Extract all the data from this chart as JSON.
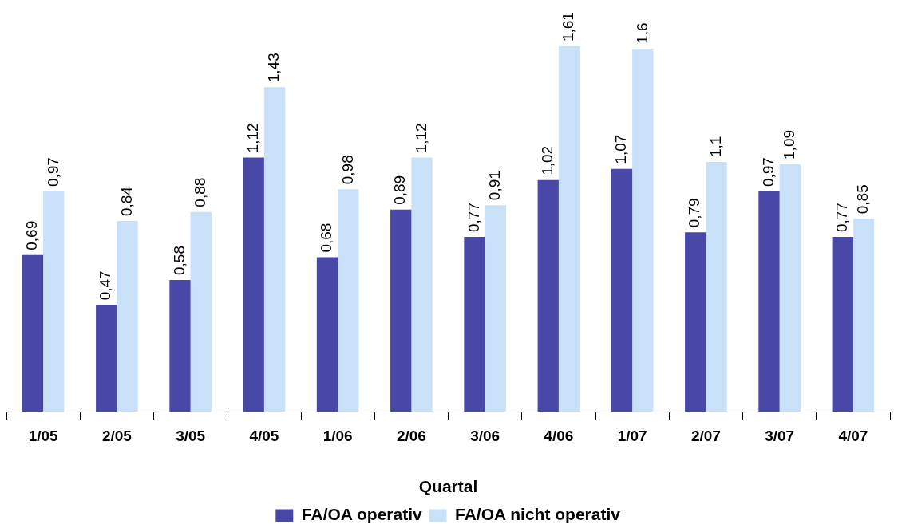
{
  "chart_data": {
    "type": "bar",
    "xlabel": "Quartal",
    "categories": [
      "1/05",
      "2/05",
      "3/05",
      "4/05",
      "1/06",
      "2/06",
      "3/06",
      "4/06",
      "1/07",
      "2/07",
      "3/07",
      "4/07"
    ],
    "series": [
      {
        "name": "FA/OA operativ",
        "color": "#4848a8",
        "values": [
          0.69,
          0.47,
          0.58,
          1.12,
          0.68,
          0.89,
          0.77,
          1.02,
          1.07,
          0.79,
          0.97,
          0.77
        ],
        "value_labels": [
          "0,69",
          "0,47",
          "0,58",
          "1,12",
          "0,68",
          "0,89",
          "0,77",
          "1,02",
          "1,07",
          "0,79",
          "0,97",
          "0,77"
        ]
      },
      {
        "name": "FA/OA nicht operativ",
        "color": "#c8e0f8",
        "values": [
          0.97,
          0.84,
          0.88,
          1.43,
          0.98,
          1.12,
          0.91,
          1.61,
          1.6,
          1.1,
          1.09,
          0.85
        ],
        "value_labels": [
          "0,97",
          "0,84",
          "0,88",
          "1,43",
          "0,98",
          "1,12",
          "0,91",
          "1,61",
          "1,6",
          "1,1",
          "1,09",
          "0,85"
        ]
      }
    ],
    "legend": "bottom",
    "grid": false,
    "tick_labels": "x"
  }
}
